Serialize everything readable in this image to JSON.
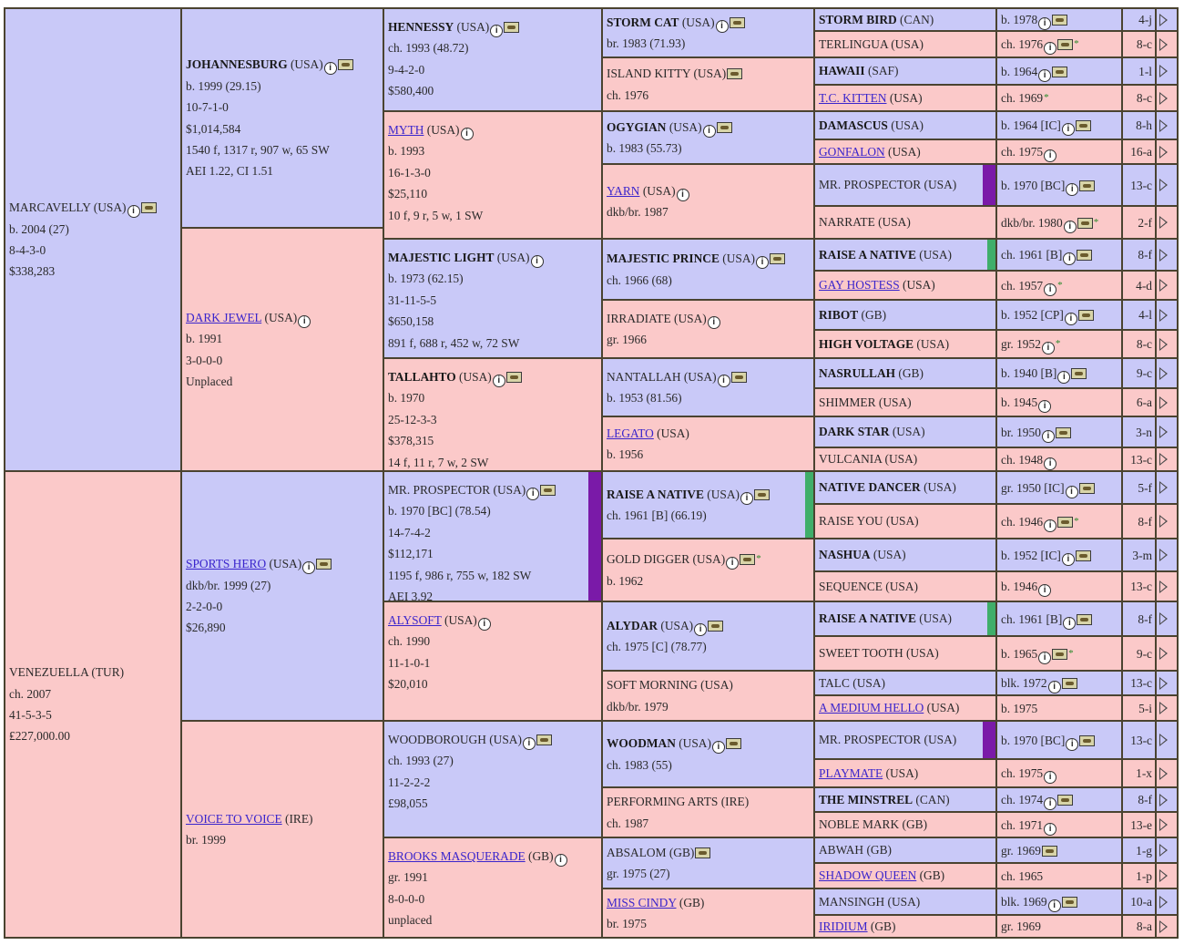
{
  "gen1": [
    {
      "name": "MARCAVELLY",
      "suffix": " (USA)",
      "style": "plain",
      "sex": "m",
      "info": true,
      "horse": true,
      "lines": [
        "b. 2004 (27)",
        "8-4-3-0",
        "$338,283"
      ]
    },
    {
      "name": "VENEZUELLA",
      "suffix": " (TUR)",
      "style": "plain",
      "sex": "f",
      "info": false,
      "horse": false,
      "lines": [
        "ch. 2007",
        "41-5-3-5",
        "₤227,000.00"
      ]
    }
  ],
  "gen2": [
    {
      "name": "JOHANNESBURG",
      "suffix": " (USA)",
      "style": "bold",
      "sex": "m",
      "info": true,
      "horse": true,
      "lines": [
        "b. 1999 (29.15)",
        "10-7-1-0",
        "$1,014,584",
        "1540 f, 1317 r, 907 w, 65 SW",
        "AEI 1.22, CI 1.51"
      ]
    },
    {
      "name": "DARK JEWEL",
      "suffix": " (USA)",
      "style": "link",
      "sex": "f",
      "info": true,
      "horse": false,
      "lines": [
        "b. 1991",
        "3-0-0-0",
        "Unplaced"
      ]
    },
    {
      "name": "SPORTS HERO",
      "suffix": " (USA)",
      "style": "link",
      "sex": "m",
      "info": true,
      "horse": true,
      "lines": [
        "dkb/br. 1999 (27)",
        "2-2-0-0",
        "$26,890"
      ]
    },
    {
      "name": "VOICE TO VOICE",
      "suffix": " (IRE)",
      "style": "link",
      "sex": "f",
      "info": false,
      "horse": false,
      "lines": [
        "br. 1999"
      ]
    }
  ],
  "gen3": [
    {
      "name": "HENNESSY",
      "suffix": " (USA)",
      "style": "bold",
      "sex": "m",
      "info": true,
      "horse": true,
      "lines": [
        "ch. 1993 (48.72)",
        "9-4-2-0",
        "$580,400"
      ]
    },
    {
      "name": "MYTH",
      "suffix": " (USA)",
      "style": "link",
      "sex": "f",
      "info": true,
      "horse": false,
      "lines": [
        "b. 1993",
        "16-1-3-0",
        "$25,110",
        "10 f, 9 r, 5 w, 1 SW"
      ]
    },
    {
      "name": "MAJESTIC LIGHT",
      "suffix": " (USA)",
      "style": "bold",
      "sex": "m",
      "info": true,
      "horse": false,
      "lines": [
        "b. 1973 (62.15)",
        "31-11-5-5",
        "$650,158",
        "891 f, 688 r, 452 w, 72 SW",
        "AEI 2.08"
      ]
    },
    {
      "name": "TALLAHTO",
      "suffix": " (USA)",
      "style": "bold",
      "sex": "f",
      "info": true,
      "horse": true,
      "lines": [
        "b. 1970",
        "25-12-3-3",
        "$378,315",
        "14 f, 11 r, 7 w, 2 SW"
      ]
    },
    {
      "name": "MR. PROSPECTOR",
      "suffix": " (USA)",
      "style": "plain",
      "sex": "m",
      "info": true,
      "horse": true,
      "bar": "purple",
      "lines": [
        "b. 1970 [BC] (78.54)",
        "14-7-4-2",
        "$112,171",
        "1195 f, 986 r, 755 w, 182 SW",
        "AEI 3.92"
      ]
    },
    {
      "name": "ALYSOFT",
      "suffix": " (USA)",
      "style": "link",
      "sex": "f",
      "info": true,
      "horse": false,
      "lines": [
        "ch. 1990",
        "11-1-0-1",
        "$20,010"
      ]
    },
    {
      "name": "WOODBOROUGH",
      "suffix": " (USA)",
      "style": "plain",
      "sex": "m",
      "info": true,
      "horse": true,
      "lines": [
        "ch. 1993 (27)",
        "11-2-2-2",
        "£98,055"
      ]
    },
    {
      "name": "BROOKS MASQUERADE",
      "suffix": " (GB)",
      "style": "link",
      "sex": "f",
      "info": true,
      "horse": false,
      "lines": [
        "gr. 1991",
        "8-0-0-0",
        "unplaced"
      ]
    }
  ],
  "gen4": [
    {
      "name": "STORM CAT",
      "suffix": " (USA)",
      "style": "bold",
      "sex": "m",
      "info": true,
      "horse": true,
      "lines": [
        "br. 1983 (71.93)"
      ]
    },
    {
      "name": "ISLAND KITTY",
      "suffix": " (USA)",
      "style": "plain",
      "sex": "f",
      "info": false,
      "horse": true,
      "lines": [
        "ch. 1976"
      ]
    },
    {
      "name": "OGYGIAN",
      "suffix": " (USA)",
      "style": "bold",
      "sex": "m",
      "info": true,
      "horse": true,
      "lines": [
        "b. 1983 (55.73)"
      ]
    },
    {
      "name": "YARN",
      "suffix": " (USA)",
      "style": "link",
      "sex": "f",
      "info": true,
      "horse": false,
      "lines": [
        "dkb/br. 1987"
      ]
    },
    {
      "name": "MAJESTIC PRINCE",
      "suffix": " (USA)",
      "style": "bold",
      "sex": "m",
      "info": true,
      "horse": true,
      "lines": [
        "ch. 1966 (68)"
      ]
    },
    {
      "name": "IRRADIATE",
      "suffix": " (USA)",
      "style": "plain",
      "sex": "f",
      "info": true,
      "horse": false,
      "lines": [
        "gr. 1966"
      ]
    },
    {
      "name": "NANTALLAH",
      "suffix": " (USA)",
      "style": "plain",
      "sex": "m",
      "info": true,
      "horse": true,
      "lines": [
        "b. 1953 (81.56)"
      ]
    },
    {
      "name": "LEGATO",
      "suffix": " (USA)",
      "style": "link",
      "sex": "f",
      "info": false,
      "horse": false,
      "lines": [
        "b. 1956"
      ]
    },
    {
      "name": "RAISE A NATIVE",
      "suffix": " (USA)",
      "style": "bold",
      "sex": "m",
      "info": true,
      "horse": true,
      "bar": "green",
      "lines": [
        "ch. 1961 [B] (66.19)"
      ]
    },
    {
      "name": "GOLD DIGGER",
      "suffix": " (USA)",
      "style": "plain",
      "sex": "f",
      "info": true,
      "horse": true,
      "star": true,
      "lines": [
        "b. 1962"
      ]
    },
    {
      "name": "ALYDAR",
      "suffix": " (USA)",
      "style": "bold",
      "sex": "m",
      "info": true,
      "horse": true,
      "lines": [
        "ch. 1975 [C] (78.77)"
      ]
    },
    {
      "name": "SOFT MORNING",
      "suffix": " (USA)",
      "style": "plain",
      "sex": "f",
      "info": false,
      "horse": false,
      "lines": [
        "dkb/br. 1979"
      ]
    },
    {
      "name": "WOODMAN",
      "suffix": " (USA)",
      "style": "bold",
      "sex": "m",
      "info": true,
      "horse": true,
      "lines": [
        "ch. 1983 (55)"
      ]
    },
    {
      "name": "PERFORMING ARTS",
      "suffix": " (IRE)",
      "style": "plain",
      "sex": "f",
      "info": false,
      "horse": false,
      "lines": [
        "ch. 1987"
      ]
    },
    {
      "name": "ABSALOM",
      "suffix": " (GB)",
      "style": "plain",
      "sex": "m",
      "info": false,
      "horse": true,
      "lines": [
        "gr. 1975 (27)"
      ]
    },
    {
      "name": "MISS CINDY",
      "suffix": " (GB)",
      "style": "link",
      "sex": "f",
      "info": false,
      "horse": false,
      "lines": [
        "br. 1975"
      ]
    }
  ],
  "gen5": [
    {
      "name": "STORM BIRD",
      "suffix": " (CAN)",
      "style": "bold",
      "sex": "m",
      "info": "b. 1978",
      "horse": true,
      "i": true,
      "star": false,
      "count": "4-j"
    },
    {
      "name": "TERLINGUA",
      "suffix": " (USA)",
      "style": "plain",
      "sex": "f",
      "info": "ch. 1976",
      "horse": true,
      "i": true,
      "star": true,
      "count": "8-c"
    },
    {
      "name": "HAWAII",
      "suffix": " (SAF)",
      "style": "bold",
      "sex": "m",
      "info": "b. 1964",
      "horse": true,
      "i": true,
      "star": false,
      "count": "1-l"
    },
    {
      "name": "T.C. KITTEN",
      "suffix": " (USA)",
      "style": "link",
      "sex": "f",
      "info": "ch. 1969",
      "horse": false,
      "i": false,
      "star": true,
      "count": "8-c"
    },
    {
      "name": "DAMASCUS",
      "suffix": " (USA)",
      "style": "bold",
      "sex": "m",
      "info": "b. 1964 [IC]",
      "horse": true,
      "i": true,
      "star": false,
      "count": "8-h"
    },
    {
      "name": "GONFALON",
      "suffix": " (USA)",
      "style": "link",
      "sex": "f",
      "info": "ch. 1975",
      "horse": false,
      "i": true,
      "star": false,
      "count": "16-a"
    },
    {
      "name": "MR. PROSPECTOR",
      "suffix": " (USA)",
      "style": "plain",
      "sex": "m",
      "info": "b. 1970 [BC]",
      "horse": true,
      "i": true,
      "star": false,
      "count": "13-c",
      "bar": "purple"
    },
    {
      "name": "NARRATE",
      "suffix": " (USA)",
      "style": "plain",
      "sex": "f",
      "info": "dkb/br. 1980",
      "horse": true,
      "i": true,
      "star": true,
      "count": "2-f"
    },
    {
      "name": "RAISE A NATIVE",
      "suffix": " (USA)",
      "style": "bold",
      "sex": "m",
      "info": "ch. 1961 [B]",
      "horse": true,
      "i": true,
      "star": false,
      "count": "8-f",
      "bar": "green"
    },
    {
      "name": "GAY HOSTESS",
      "suffix": " (USA)",
      "style": "link",
      "sex": "f",
      "info": "ch. 1957",
      "horse": false,
      "i": true,
      "star": true,
      "count": "4-d"
    },
    {
      "name": "RIBOT",
      "suffix": " (GB)",
      "style": "bold",
      "sex": "m",
      "info": "b. 1952 [CP]",
      "horse": true,
      "i": true,
      "star": false,
      "count": "4-l"
    },
    {
      "name": "HIGH VOLTAGE",
      "suffix": " (USA)",
      "style": "bold",
      "sex": "f",
      "info": "gr. 1952",
      "horse": false,
      "i": true,
      "star": true,
      "count": "8-c"
    },
    {
      "name": "NASRULLAH",
      "suffix": " (GB)",
      "style": "bold",
      "sex": "m",
      "info": "b. 1940 [B]",
      "horse": true,
      "i": true,
      "star": false,
      "count": "9-c"
    },
    {
      "name": "SHIMMER",
      "suffix": " (USA)",
      "style": "plain",
      "sex": "f",
      "info": "b. 1945",
      "horse": false,
      "i": true,
      "star": false,
      "count": "6-a"
    },
    {
      "name": "DARK STAR",
      "suffix": " (USA)",
      "style": "bold",
      "sex": "m",
      "info": "br. 1950",
      "horse": true,
      "i": true,
      "star": false,
      "count": "3-n"
    },
    {
      "name": "VULCANIA",
      "suffix": " (USA)",
      "style": "plain",
      "sex": "f",
      "info": "ch. 1948",
      "horse": false,
      "i": true,
      "star": false,
      "count": "13-c"
    },
    {
      "name": "NATIVE DANCER",
      "suffix": " (USA)",
      "style": "bold",
      "sex": "m",
      "info": "gr. 1950 [IC]",
      "horse": true,
      "i": true,
      "star": false,
      "count": "5-f"
    },
    {
      "name": "RAISE YOU",
      "suffix": " (USA)",
      "style": "plain",
      "sex": "f",
      "info": "ch. 1946",
      "horse": true,
      "i": true,
      "star": true,
      "count": "8-f"
    },
    {
      "name": "NASHUA",
      "suffix": " (USA)",
      "style": "bold",
      "sex": "m",
      "info": "b. 1952 [IC]",
      "horse": true,
      "i": true,
      "star": false,
      "count": "3-m"
    },
    {
      "name": "SEQUENCE",
      "suffix": " (USA)",
      "style": "plain",
      "sex": "f",
      "info": "b. 1946",
      "horse": false,
      "i": true,
      "star": false,
      "count": "13-c"
    },
    {
      "name": "RAISE A NATIVE",
      "suffix": " (USA)",
      "style": "bold",
      "sex": "m",
      "info": "ch. 1961 [B]",
      "horse": true,
      "i": true,
      "star": false,
      "count": "8-f",
      "bar": "green"
    },
    {
      "name": "SWEET TOOTH",
      "suffix": " (USA)",
      "style": "plain",
      "sex": "f",
      "info": "b. 1965",
      "horse": true,
      "i": true,
      "star": true,
      "count": "9-c"
    },
    {
      "name": "TALC",
      "suffix": " (USA)",
      "style": "plain",
      "sex": "m",
      "info": "blk. 1972",
      "horse": true,
      "i": true,
      "star": false,
      "count": "13-c"
    },
    {
      "name": "A MEDIUM HELLO",
      "suffix": " (USA)",
      "style": "link",
      "sex": "f",
      "info": "b. 1975",
      "horse": false,
      "i": false,
      "star": false,
      "count": "5-i"
    },
    {
      "name": "MR. PROSPECTOR",
      "suffix": " (USA)",
      "style": "plain",
      "sex": "m",
      "info": "b. 1970 [BC]",
      "horse": true,
      "i": true,
      "star": false,
      "count": "13-c",
      "bar": "purple"
    },
    {
      "name": "PLAYMATE",
      "suffix": " (USA)",
      "style": "link",
      "sex": "f",
      "info": "ch. 1975",
      "horse": false,
      "i": true,
      "star": false,
      "count": "1-x"
    },
    {
      "name": "THE MINSTREL",
      "suffix": " (CAN)",
      "style": "bold",
      "sex": "m",
      "info": "ch. 1974",
      "horse": true,
      "i": true,
      "star": false,
      "count": "8-f"
    },
    {
      "name": "NOBLE MARK",
      "suffix": " (GB)",
      "style": "plain",
      "sex": "f",
      "info": "ch. 1971",
      "horse": false,
      "i": true,
      "star": false,
      "count": "13-e"
    },
    {
      "name": "ABWAH",
      "suffix": " (GB)",
      "style": "plain",
      "sex": "m",
      "info": "gr. 1969",
      "horse": true,
      "i": false,
      "star": false,
      "count": "1-g"
    },
    {
      "name": "SHADOW QUEEN",
      "suffix": " (GB)",
      "style": "link",
      "sex": "f",
      "info": "ch. 1965",
      "horse": false,
      "i": false,
      "star": false,
      "count": "1-p"
    },
    {
      "name": "MANSINGH",
      "suffix": " (USA)",
      "style": "plain",
      "sex": "m",
      "info": "blk. 1969",
      "horse": true,
      "i": true,
      "star": false,
      "count": "10-a"
    },
    {
      "name": "IRIDIUM",
      "suffix": " (GB)",
      "style": "link",
      "sex": "f",
      "info": "gr. 1969",
      "horse": false,
      "i": false,
      "star": false,
      "count": "8-a"
    }
  ],
  "colors": {
    "male_bg": "#c9c9f8",
    "female_bg": "#fbc9c9",
    "link": "#3a25cc",
    "border": "#4a4330"
  },
  "icons": {
    "info": "info-icon",
    "photo": "horse-icon",
    "star": "star-icon",
    "expand": "arrow-icon"
  },
  "glyphs": {
    "info": "i",
    "star": "*"
  }
}
